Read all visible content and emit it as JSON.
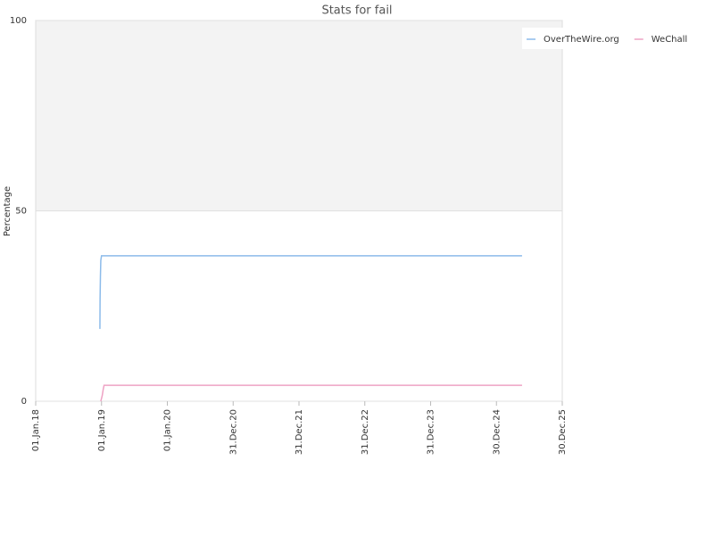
{
  "chart_data": {
    "type": "line",
    "title": "Stats for fail",
    "y_label": "Percentage",
    "series": [
      {
        "name": "OverTheWire.org",
        "color": "#8cbbea",
        "x": [
          "2018-12-23",
          "2018-12-24",
          "2018-12-26",
          "2018-12-28",
          "2019-01-01",
          "2025-05-21"
        ],
        "values": [
          19,
          27,
          33,
          37,
          38.2,
          38.2
        ]
      },
      {
        "name": "WeChall",
        "color": "#eea2c4",
        "x": [
          "2018-12-28",
          "2019-01-05",
          "2019-01-10",
          "2019-01-15",
          "2025-05-21"
        ],
        "values": [
          0,
          1.5,
          3,
          4.2,
          4.2
        ]
      }
    ],
    "xlim": [
      "2018-01-01",
      "2025-12-30"
    ],
    "xticks": [
      {
        "value": "2018-01-01",
        "label": "01.Jan.18"
      },
      {
        "value": "2019-01-01",
        "label": "01.Jan.19"
      },
      {
        "value": "2020-01-01",
        "label": "01.Jan.20"
      },
      {
        "value": "2020-12-31",
        "label": "31.Dec.20"
      },
      {
        "value": "2021-12-31",
        "label": "31.Dec.21"
      },
      {
        "value": "2022-12-31",
        "label": "31.Dec.22"
      },
      {
        "value": "2023-12-31",
        "label": "31.Dec.23"
      },
      {
        "value": "2024-12-30",
        "label": "30.Dec.24"
      },
      {
        "value": "2025-12-30",
        "label": "30.Dec.25"
      }
    ],
    "ylim": [
      0,
      100
    ],
    "yticks": [
      0,
      50,
      100
    ],
    "shaded_range": [
      50,
      100
    ],
    "shade_color": "#f3f3f3",
    "legend": "top-right"
  }
}
